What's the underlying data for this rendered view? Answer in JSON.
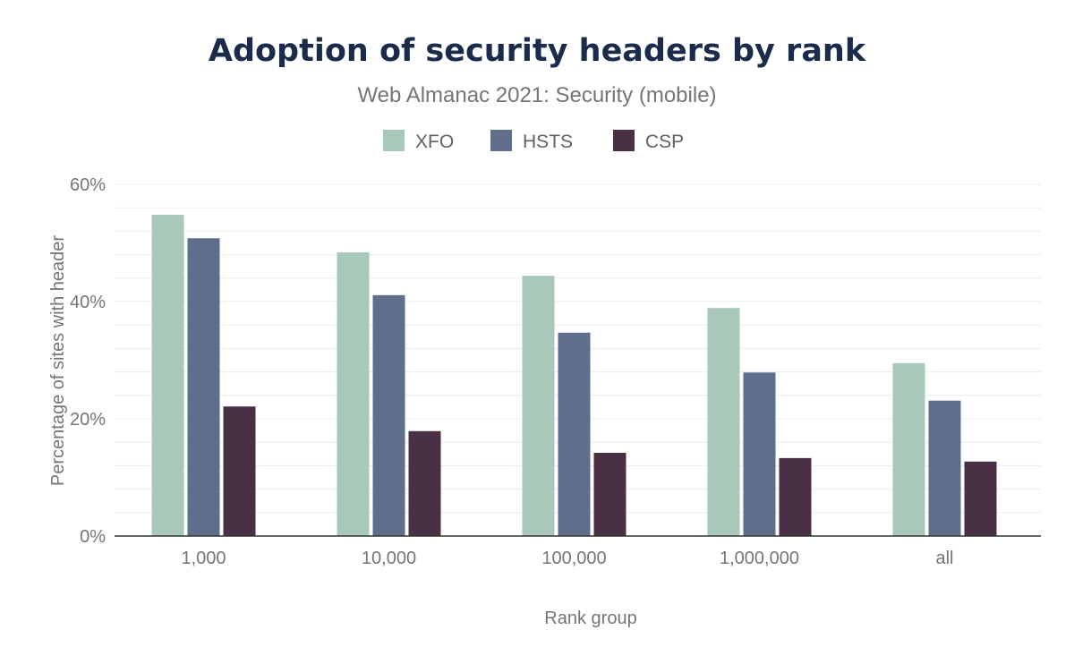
{
  "chart_data": {
    "type": "bar",
    "title": "Adoption of security headers by rank",
    "subtitle": "Web Almanac 2021: Security (mobile)",
    "xlabel": "Rank group",
    "ylabel": "Percentage of sites with header",
    "categories": [
      "1,000",
      "10,000",
      "100,000",
      "1,000,000",
      "all"
    ],
    "series": [
      {
        "name": "XFO",
        "color": "#a8c8b9",
        "values": [
          54.8,
          48.4,
          44.4,
          38.9,
          29.5
        ]
      },
      {
        "name": "HSTS",
        "color": "#5f6f8b",
        "values": [
          50.8,
          41.1,
          34.7,
          27.9,
          23.1
        ]
      },
      {
        "name": "CSP",
        "color": "#4a3044",
        "values": [
          22.1,
          17.9,
          14.2,
          13.3,
          12.7
        ]
      }
    ],
    "ylim": [
      0,
      60
    ],
    "yticks": [
      0,
      20,
      40,
      60
    ],
    "ytick_labels": [
      "0%",
      "20%",
      "40%",
      "60%"
    ],
    "grid": true,
    "legend_position": "top"
  }
}
